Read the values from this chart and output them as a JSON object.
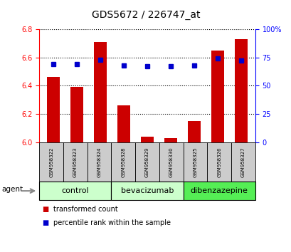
{
  "title": "GDS5672 / 226747_at",
  "samples": [
    "GSM958322",
    "GSM958323",
    "GSM958324",
    "GSM958328",
    "GSM958329",
    "GSM958330",
    "GSM958325",
    "GSM958326",
    "GSM958327"
  ],
  "transformed_counts": [
    6.46,
    6.39,
    6.71,
    6.26,
    6.04,
    6.03,
    6.15,
    6.65,
    6.73
  ],
  "percentile_ranks": [
    69,
    69,
    73,
    68,
    67,
    67,
    68,
    74,
    72
  ],
  "groups": [
    {
      "label": "control",
      "indices": [
        0,
        1,
        2
      ],
      "color": "#ccffcc"
    },
    {
      "label": "bevacizumab",
      "indices": [
        3,
        4,
        5
      ],
      "color": "#ccffcc"
    },
    {
      "label": "dibenzazepine",
      "indices": [
        6,
        7,
        8
      ],
      "color": "#55ee55"
    }
  ],
  "ylim_left": [
    6.0,
    6.8
  ],
  "ylim_right": [
    0,
    100
  ],
  "yticks_left": [
    6.0,
    6.2,
    6.4,
    6.6,
    6.8
  ],
  "yticks_right": [
    0,
    25,
    50,
    75,
    100
  ],
  "bar_color": "#cc0000",
  "dot_color": "#0000cc",
  "bar_width": 0.55,
  "background_color": "#ffffff",
  "plot_bg_color": "#ffffff",
  "agent_label": "agent",
  "legend_bar_label": "transformed count",
  "legend_dot_label": "percentile rank within the sample",
  "sample_box_color": "#cccccc",
  "grid_color": "#000000",
  "title_fontsize": 10,
  "tick_fontsize": 7,
  "legend_fontsize": 7,
  "sample_fontsize": 5,
  "group_fontsize": 8
}
